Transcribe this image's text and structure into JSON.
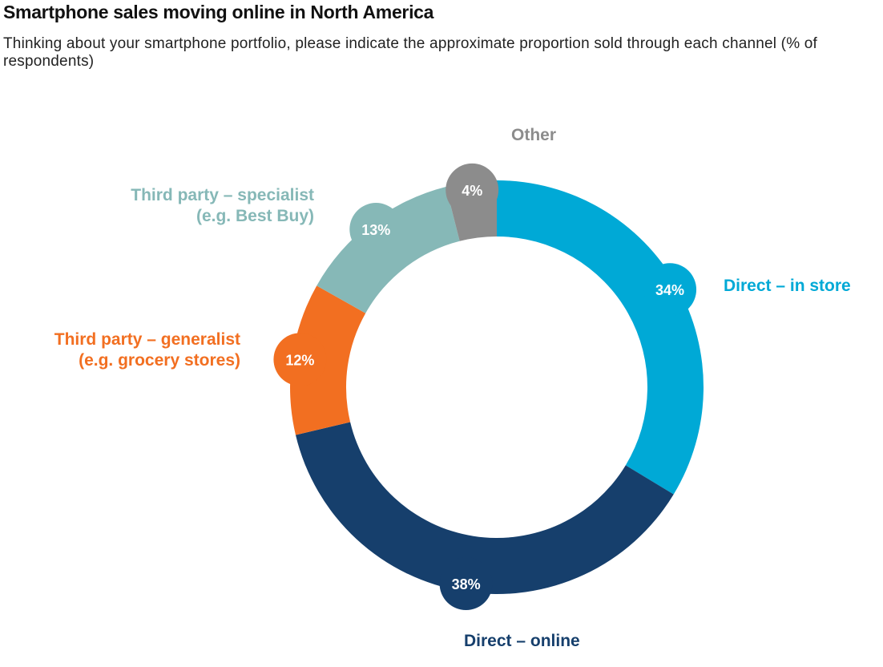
{
  "title": "Smartphone sales moving online in North America",
  "subtitle": "Thinking about your smartphone portfolio, please indicate the approximate proportion sold through each channel (% of respondents)",
  "chart_data": {
    "type": "pie",
    "title": "Smartphone sales moving online in North America",
    "subtitle": "Thinking about your smartphone portfolio, please indicate the approximate proportion sold through each channel (% of respondents)",
    "categories": [
      "Direct – in store",
      "Direct – online",
      "Third party – generalist (e.g. grocery stores)",
      "Third party – specialist (e.g. Best Buy)",
      "Other"
    ],
    "values": [
      34,
      38,
      12,
      13,
      4
    ],
    "value_labels": [
      "34%",
      "38%",
      "12%",
      "13%",
      "4%"
    ],
    "colors": [
      "#00a9d6",
      "#163f6c",
      "#f26f21",
      "#86b8b7",
      "#8c8c8c"
    ],
    "label_lines": [
      [
        "Direct – in store"
      ],
      [
        "Direct – online"
      ],
      [
        "Third party – generalist",
        "(e.g. grocery stores)"
      ],
      [
        "Third party – specialist",
        "(e.g. Best Buy)"
      ],
      [
        "Other"
      ]
    ]
  }
}
